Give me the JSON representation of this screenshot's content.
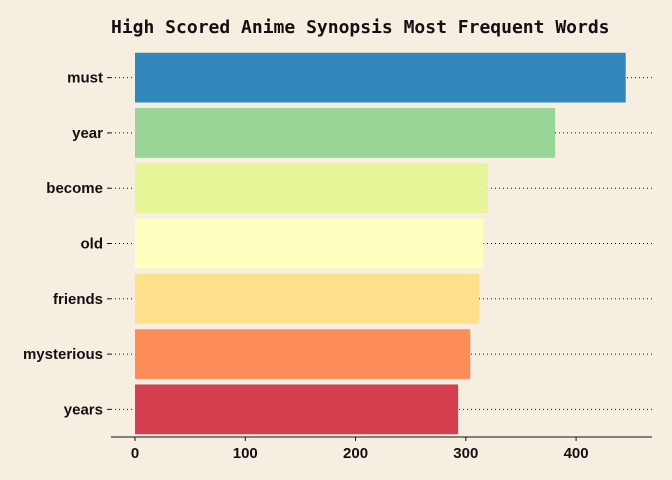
{
  "chart_data": {
    "type": "bar",
    "orientation": "horizontal",
    "title": "High Scored Anime Synopsis Most Frequent Words",
    "xlabel": "",
    "ylabel": "",
    "categories": [
      "must",
      "year",
      "become",
      "old",
      "friends",
      "mysterious",
      "years"
    ],
    "values": [
      445,
      381,
      320,
      316,
      312,
      304,
      293
    ],
    "colors": [
      "#3288bd",
      "#99d594",
      "#e6f598",
      "#ffffbf",
      "#fee08b",
      "#fc8d59",
      "#d53e4f"
    ],
    "xlim": [
      -21,
      468
    ],
    "xticks": [
      0,
      100,
      200,
      300,
      400
    ],
    "grid": "dotted-category-guides",
    "legend": "none"
  }
}
